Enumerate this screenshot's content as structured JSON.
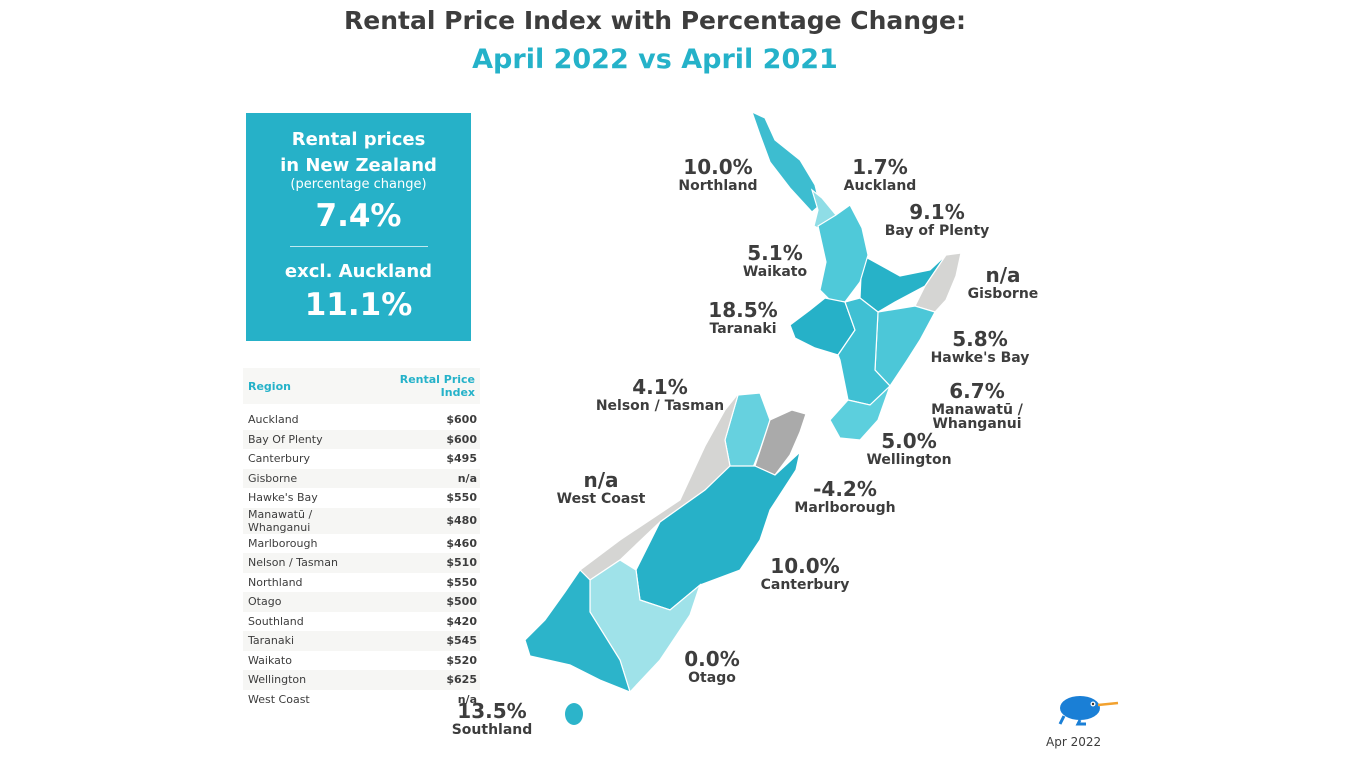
{
  "title": "Rental Price Index with Percentage Change:",
  "subtitle": "April 2022 vs April 2021",
  "summary": {
    "heading_line1": "Rental prices",
    "heading_line2": "in New Zealand",
    "sub": "(percentage change)",
    "nz_value": "7.4%",
    "excl_label": "excl. Auckland",
    "excl_value": "11.1%"
  },
  "table": {
    "headers": [
      "Region",
      "Rental Price Index"
    ],
    "rows": [
      [
        "Auckland",
        "$600"
      ],
      [
        "Bay Of Plenty",
        "$600"
      ],
      [
        "Canterbury",
        "$495"
      ],
      [
        "Gisborne",
        "n/a"
      ],
      [
        "Hawke's Bay",
        "$550"
      ],
      [
        "Manawatū / Whanganui",
        "$480"
      ],
      [
        "Marlborough",
        "$460"
      ],
      [
        "Nelson / Tasman",
        "$510"
      ],
      [
        "Northland",
        "$550"
      ],
      [
        "Otago",
        "$500"
      ],
      [
        "Southland",
        "$420"
      ],
      [
        "Taranaki",
        "$545"
      ],
      [
        "Waikato",
        "$520"
      ],
      [
        "Wellington",
        "$625"
      ],
      [
        "West Coast",
        "n/a"
      ]
    ]
  },
  "regions": [
    {
      "name": "Northland",
      "change": "10.0%",
      "color": "#3dbdd0"
    },
    {
      "name": "Auckland",
      "change": "1.7%",
      "color": "#8fdde6"
    },
    {
      "name": "Bay of Plenty",
      "change": "9.1%",
      "color": "#27b2c8"
    },
    {
      "name": "Gisborne",
      "change": "n/a",
      "color": "#d5d5d3"
    },
    {
      "name": "Waikato",
      "change": "5.1%",
      "color": "#4fc9d9"
    },
    {
      "name": "Taranaki",
      "change": "18.5%",
      "color": "#26b1c8"
    },
    {
      "name": "Hawke's Bay",
      "change": "5.8%",
      "color": "#4cc7d8"
    },
    {
      "name": "Manawatū / Whanganui",
      "change": "6.7%",
      "color": "#3fc0d3"
    },
    {
      "name": "Wellington",
      "change": "5.0%",
      "color": "#5ccfdd"
    },
    {
      "name": "Nelson / Tasman",
      "change": "4.1%",
      "color": "#66d1df"
    },
    {
      "name": "West Coast",
      "change": "n/a",
      "color": "#d5d5d3"
    },
    {
      "name": "Marlborough",
      "change": "-4.2%",
      "color": "#aaaaaa"
    },
    {
      "name": "Canterbury",
      "change": "10.0%",
      "color": "#27b1c8"
    },
    {
      "name": "Otago",
      "change": "0.0%",
      "color": "#9fe2e9"
    },
    {
      "name": "Southland",
      "change": "13.5%",
      "color": "#2cb4ca"
    }
  ],
  "footer": {
    "date": "Apr 2022",
    "logo": "kiwi-bird-logo"
  }
}
